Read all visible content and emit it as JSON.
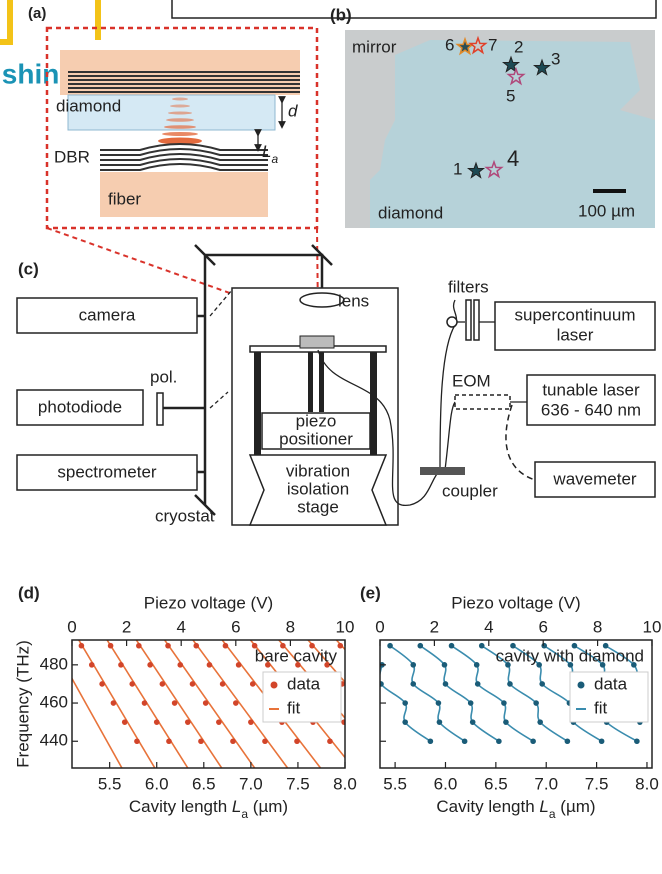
{
  "header": {
    "logo": "ishing"
  },
  "panel_a": {
    "label": "(a)",
    "diamond": "diamond",
    "d": "d",
    "dbr": "DBR",
    "la": [
      "L",
      "a"
    ],
    "fiber": "fiber"
  },
  "panel_b": {
    "label": "(b)",
    "mirror": "mirror",
    "diamond": "diamond",
    "scale": "100 µm",
    "stars": [
      "1",
      "2",
      "3",
      "4",
      "5",
      "6",
      "7"
    ]
  },
  "panel_c": {
    "label": "(c)",
    "camera": "camera",
    "photodiode": "photodiode",
    "spectrometer": "spectrometer",
    "pol": "pol.",
    "cryostat": "cryostat",
    "lens": "lens",
    "piezo": [
      "piezo",
      "positioner"
    ],
    "vibration": [
      "vibration",
      "isolation",
      "stage"
    ],
    "filters": "filters",
    "supercontinuum": [
      "supercontinuum",
      "laser"
    ],
    "eom": "EOM",
    "tunable": [
      "tunable laser",
      "636 - 640 nm"
    ],
    "wavemeter": "wavemeter",
    "coupler": "coupler"
  },
  "chart_data": [
    {
      "type": "line",
      "label": "(d)",
      "annotation": "bare cavity",
      "xlabel": [
        "Cavity length ",
        "L",
        "a",
        " (µm)"
      ],
      "x2label": "Piezo voltage (V)",
      "ylabel": "Frequency (THz)",
      "xlim": [
        5.1,
        8.0
      ],
      "xticks": [
        5.5,
        {
          "value": 6,
          "label": "6.0"
        },
        6.5,
        {
          "value": 7,
          "label": "7.0"
        },
        7.5,
        {
          "value": 8,
          "label": "8.0"
        }
      ],
      "x2lim": [
        0,
        10
      ],
      "x2ticks": [
        0,
        2,
        4,
        6,
        8,
        10
      ],
      "ylim": [
        426,
        493
      ],
      "yticks": [
        440,
        460,
        480
      ],
      "ytick_labels": true,
      "smooth": false,
      "series": [
        {
          "name": "data",
          "kind": "scatter",
          "color": "#d2452a",
          "modes": [
            {
              "x": [
                5.79,
                5.66,
                5.54,
                5.42,
                5.31,
                5.2
              ],
              "values": [
                440,
                450,
                460,
                470,
                480,
                490
              ]
            },
            {
              "x": [
                6.13,
                6.0,
                5.87,
                5.74,
                5.62,
                5.51
              ],
              "values": [
                440,
                450,
                460,
                470,
                480,
                490
              ]
            },
            {
              "x": [
                6.47,
                6.33,
                6.19,
                6.06,
                5.93,
                5.81
              ],
              "values": [
                440,
                450,
                460,
                470,
                480,
                490
              ]
            },
            {
              "x": [
                6.81,
                6.66,
                6.52,
                6.38,
                6.25,
                6.12
              ],
              "values": [
                440,
                450,
                460,
                470,
                480,
                490
              ]
            },
            {
              "x": [
                7.15,
                7.0,
                6.84,
                6.7,
                6.56,
                6.42
              ],
              "values": [
                440,
                450,
                460,
                470,
                480,
                490
              ]
            },
            {
              "x": [
                7.49,
                7.33,
                7.17,
                7.02,
                6.87,
                6.73
              ],
              "values": [
                440,
                450,
                460,
                470,
                480,
                490
              ]
            },
            {
              "x": [
                7.84,
                7.66,
                7.5,
                7.34,
                7.18,
                7.04
              ],
              "values": [
                440,
                450,
                460,
                470,
                480,
                490
              ]
            },
            {
              "x": [
                7.99,
                7.82,
                7.65,
                7.5,
                7.34
              ],
              "values": [
                450,
                460,
                470,
                480,
                490
              ]
            },
            {
              "x": [
                7.97,
                7.81,
                7.65
              ],
              "values": [
                470,
                480,
                490
              ]
            },
            {
              "x": [
                7.95
              ],
              "values": [
                490
              ]
            }
          ]
        },
        {
          "name": "fit",
          "kind": "line",
          "color": "#e8733a",
          "modes": [
            {
              "x": [
                5.63,
                4.86
              ],
              "values": [
                426,
                494
              ]
            },
            {
              "x": [
                5.98,
                5.16
              ],
              "values": [
                426,
                494
              ]
            },
            {
              "x": [
                6.33,
                5.46
              ],
              "values": [
                426,
                494
              ]
            },
            {
              "x": [
                6.69,
                5.77
              ],
              "values": [
                426,
                494
              ]
            },
            {
              "x": [
                7.04,
                6.07
              ],
              "values": [
                426,
                494
              ]
            },
            {
              "x": [
                7.39,
                6.37
              ],
              "values": [
                426,
                494
              ]
            },
            {
              "x": [
                7.74,
                6.68
              ],
              "values": [
                426,
                494
              ]
            },
            {
              "x": [
                8.09,
                6.98
              ],
              "values": [
                426,
                494
              ]
            },
            {
              "x": [
                8.45,
                7.28
              ],
              "values": [
                426,
                494
              ]
            },
            {
              "x": [
                8.8,
                7.59
              ],
              "values": [
                426,
                494
              ]
            },
            {
              "x": [
                9.15,
                7.89
              ],
              "values": [
                426,
                494
              ]
            }
          ]
        }
      ]
    },
    {
      "type": "line",
      "label": "(e)",
      "annotation": "cavity with diamond",
      "xlabel": [
        "Cavity length ",
        "L",
        "a",
        " (µm)"
      ],
      "x2label": "Piezo voltage (V)",
      "xlim": [
        5.35,
        8.05
      ],
      "xticks": [
        5.5,
        {
          "value": 6,
          "label": "6.0"
        },
        6.5,
        {
          "value": 7,
          "label": "7.0"
        },
        7.5,
        {
          "value": 8,
          "label": "8.0"
        }
      ],
      "x2lim": [
        0,
        10
      ],
      "x2ticks": [
        0,
        2,
        4,
        6,
        8,
        10
      ],
      "ylim": [
        426,
        493
      ],
      "yticks": [
        440,
        460,
        480
      ],
      "ytick_labels": false,
      "smooth": true,
      "series": [
        {
          "name": "data",
          "kind": "scatter",
          "color": "#1a5c78",
          "modes": [
            {
              "x": [
                5.85,
                5.6,
                5.6,
                5.36,
                5.37
              ],
              "values": [
                440,
                450,
                460,
                470,
                480
              ]
            },
            {
              "x": [
                6.19,
                5.94,
                5.93,
                5.68,
                5.68,
                5.45
              ],
              "values": [
                440,
                450,
                460,
                470,
                480,
                490
              ]
            },
            {
              "x": [
                6.53,
                6.27,
                6.25,
                6.0,
                5.99,
                5.75
              ],
              "values": [
                440,
                450,
                460,
                470,
                480,
                490
              ]
            },
            {
              "x": [
                6.87,
                6.6,
                6.58,
                6.32,
                6.31,
                6.06
              ],
              "values": [
                440,
                450,
                460,
                470,
                480,
                490
              ]
            },
            {
              "x": [
                7.21,
                6.94,
                6.9,
                6.64,
                6.62,
                6.36
              ],
              "values": [
                440,
                450,
                460,
                470,
                480,
                490
              ]
            },
            {
              "x": [
                7.55,
                7.27,
                7.23,
                6.96,
                6.93,
                6.67
              ],
              "values": [
                440,
                450,
                460,
                470,
                480,
                490
              ]
            },
            {
              "x": [
                7.9,
                7.6,
                7.56,
                7.28,
                7.24,
                6.98
              ],
              "values": [
                440,
                450,
                460,
                470,
                480,
                490
              ]
            },
            {
              "x": [
                7.93,
                7.88,
                7.59,
                7.56,
                7.28
              ],
              "values": [
                450,
                460,
                470,
                480,
                490
              ]
            },
            {
              "x": [
                7.91,
                7.87,
                7.59
              ],
              "values": [
                470,
                480,
                490
              ]
            }
          ]
        },
        {
          "name": "fit",
          "kind": "line",
          "color": "#3a8cae",
          "modes": [
            {
              "x": [
                5.85,
                5.6,
                5.6,
                5.36,
                5.37
              ],
              "values": [
                440,
                450,
                460,
                470,
                480
              ]
            },
            {
              "x": [
                6.19,
                5.94,
                5.93,
                5.68,
                5.68,
                5.45
              ],
              "values": [
                440,
                450,
                460,
                470,
                480,
                490
              ]
            },
            {
              "x": [
                6.53,
                6.27,
                6.25,
                6.0,
                5.99,
                5.75
              ],
              "values": [
                440,
                450,
                460,
                470,
                480,
                490
              ]
            },
            {
              "x": [
                6.87,
                6.6,
                6.58,
                6.32,
                6.31,
                6.06
              ],
              "values": [
                440,
                450,
                460,
                470,
                480,
                490
              ]
            },
            {
              "x": [
                7.21,
                6.94,
                6.9,
                6.64,
                6.62,
                6.36
              ],
              "values": [
                440,
                450,
                460,
                470,
                480,
                490
              ]
            },
            {
              "x": [
                7.55,
                7.27,
                7.23,
                6.96,
                6.93,
                6.67
              ],
              "values": [
                440,
                450,
                460,
                470,
                480,
                490
              ]
            },
            {
              "x": [
                7.9,
                7.6,
                7.56,
                7.28,
                7.24,
                6.98
              ],
              "values": [
                440,
                450,
                460,
                470,
                480,
                490
              ]
            },
            {
              "x": [
                7.93,
                7.88,
                7.59,
                7.56,
                7.28
              ],
              "values": [
                450,
                460,
                470,
                480,
                490
              ]
            },
            {
              "x": [
                7.91,
                7.87,
                7.59
              ],
              "values": [
                470,
                480,
                490
              ]
            }
          ]
        }
      ]
    }
  ]
}
